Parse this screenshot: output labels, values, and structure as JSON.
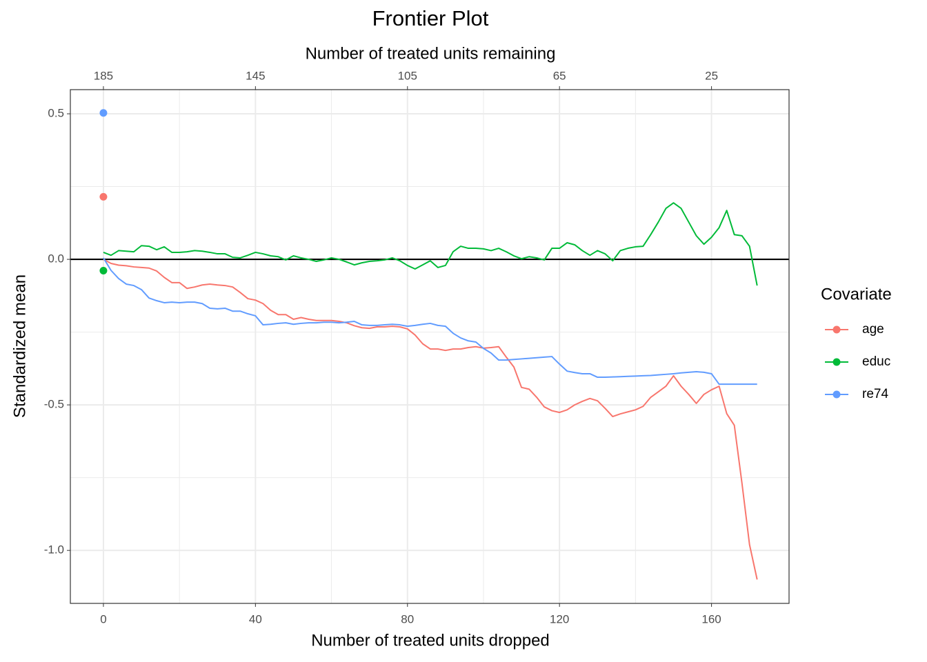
{
  "chart_data": {
    "type": "line",
    "title": "Frontier Plot",
    "xlabel": "Number of treated units dropped",
    "ylabel": "Standardized mean",
    "x2label": "Number of treated units remaining",
    "xlim": [
      -8.7,
      180.4
    ],
    "xticks": [
      0,
      40,
      80,
      120,
      160
    ],
    "x_minor_ticks": [
      20,
      60,
      100,
      140
    ],
    "x2lim": [
      193.7,
      4.6
    ],
    "x2ticks": [
      185,
      145,
      105,
      65,
      25
    ],
    "ylim": [
      -1.182,
      0.583
    ],
    "yticks": [
      {
        "value": 0.5,
        "label": "0.5"
      },
      {
        "value": 0,
        "label": "0.0"
      },
      {
        "value": -0.5,
        "label": "-0.5"
      },
      {
        "value": -1,
        "label": "-1.0"
      }
    ],
    "y_minor_ticks": [
      0.25,
      -0.25,
      -0.75
    ],
    "grid": true,
    "hline": 0,
    "legend": "right",
    "legend_title": "Covariate",
    "point_x": 0,
    "x": [
      0,
      2,
      4,
      6,
      8,
      10,
      12,
      14,
      16,
      18,
      20,
      22,
      24,
      26,
      28,
      30,
      32,
      34,
      36,
      38,
      40,
      42,
      44,
      46,
      48,
      50,
      52,
      54,
      56,
      58,
      60,
      62,
      64,
      66,
      68,
      70,
      72,
      74,
      76,
      78,
      80,
      82,
      84,
      86,
      88,
      90,
      92,
      94,
      96,
      98,
      100,
      102,
      104,
      106,
      108,
      110,
      112,
      114,
      116,
      118,
      120,
      122,
      124,
      126,
      128,
      130,
      132,
      134,
      136,
      138,
      140,
      142,
      144,
      146,
      148,
      150,
      152,
      154,
      156,
      158,
      160,
      162,
      164,
      166,
      168,
      170,
      172
    ],
    "series": [
      {
        "name": "age",
        "color": "#f8766d",
        "point": 0.215,
        "values": [
          0,
          -0.014,
          -0.02,
          -0.022,
          -0.026,
          -0.028,
          -0.03,
          -0.04,
          -0.062,
          -0.08,
          -0.08,
          -0.1,
          -0.095,
          -0.088,
          -0.085,
          -0.088,
          -0.09,
          -0.095,
          -0.114,
          -0.135,
          -0.14,
          -0.152,
          -0.175,
          -0.19,
          -0.19,
          -0.206,
          -0.2,
          -0.206,
          -0.21,
          -0.21,
          -0.21,
          -0.213,
          -0.218,
          -0.228,
          -0.235,
          -0.237,
          -0.232,
          -0.232,
          -0.23,
          -0.232,
          -0.239,
          -0.26,
          -0.29,
          -0.308,
          -0.308,
          -0.313,
          -0.308,
          -0.308,
          -0.303,
          -0.3,
          -0.305,
          -0.303,
          -0.3,
          -0.336,
          -0.37,
          -0.44,
          -0.446,
          -0.474,
          -0.507,
          -0.52,
          -0.526,
          -0.517,
          -0.5,
          -0.488,
          -0.478,
          -0.486,
          -0.512,
          -0.54,
          -0.531,
          -0.524,
          -0.517,
          -0.505,
          -0.474,
          -0.455,
          -0.436,
          -0.4,
          -0.436,
          -0.464,
          -0.495,
          -0.464,
          -0.448,
          -0.436,
          -0.53,
          -0.57,
          -0.768,
          -0.98,
          -1.1
        ]
      },
      {
        "name": "educ",
        "color": "#00ba38",
        "point": -0.039,
        "values": [
          0.024,
          0.014,
          0.03,
          0.028,
          0.026,
          0.047,
          0.045,
          0.033,
          0.043,
          0.024,
          0.024,
          0.026,
          0.03,
          0.028,
          0.024,
          0.019,
          0.019,
          0.007,
          0.005,
          0.014,
          0.024,
          0.019,
          0.012,
          0.009,
          -0.002,
          0.012,
          0.005,
          0,
          -0.007,
          -0.002,
          0.005,
          0,
          -0.009,
          -0.019,
          -0.012,
          -0.007,
          -0.005,
          -0.002,
          0.005,
          -0.005,
          -0.021,
          -0.033,
          -0.019,
          -0.005,
          -0.028,
          -0.021,
          0.026,
          0.045,
          0.038,
          0.038,
          0.036,
          0.03,
          0.038,
          0.026,
          0.012,
          0.002,
          0.009,
          0.005,
          -0.002,
          0.038,
          0.038,
          0.057,
          0.05,
          0.03,
          0.014,
          0.03,
          0.019,
          -0.005,
          0.03,
          0.038,
          0.043,
          0.045,
          0.085,
          0.128,
          0.175,
          0.194,
          0.175,
          0.128,
          0.081,
          0.052,
          0.076,
          0.109,
          0.168,
          0.085,
          0.081,
          0.045,
          -0.09
        ]
      },
      {
        "name": "re74",
        "color": "#619cff",
        "point": 0.503,
        "values": [
          0.005,
          -0.038,
          -0.066,
          -0.085,
          -0.09,
          -0.104,
          -0.133,
          -0.142,
          -0.149,
          -0.147,
          -0.149,
          -0.147,
          -0.147,
          -0.152,
          -0.168,
          -0.17,
          -0.168,
          -0.178,
          -0.178,
          -0.187,
          -0.194,
          -0.225,
          -0.223,
          -0.22,
          -0.218,
          -0.223,
          -0.22,
          -0.218,
          -0.218,
          -0.216,
          -0.216,
          -0.218,
          -0.216,
          -0.213,
          -0.225,
          -0.227,
          -0.227,
          -0.225,
          -0.223,
          -0.225,
          -0.23,
          -0.227,
          -0.223,
          -0.22,
          -0.227,
          -0.23,
          -0.254,
          -0.27,
          -0.28,
          -0.284,
          -0.306,
          -0.322,
          -0.346,
          -0.346,
          -0.344,
          -0.342,
          -0.34,
          -0.338,
          -0.336,
          -0.334,
          -0.36,
          -0.384,
          -0.389,
          -0.393,
          -0.393,
          -0.405,
          -0.405,
          -0.404,
          -0.403,
          -0.402,
          -0.401,
          -0.4,
          -0.399,
          -0.397,
          -0.395,
          -0.393,
          -0.39,
          -0.388,
          -0.386,
          -0.388,
          -0.393,
          -0.429,
          -0.429,
          -0.429,
          -0.429,
          -0.429,
          -0.429
        ]
      }
    ]
  }
}
